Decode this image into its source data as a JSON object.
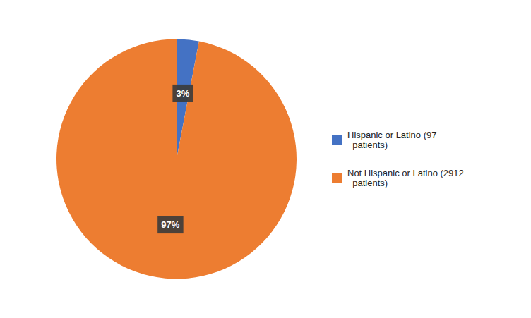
{
  "chart_data": {
    "type": "pie",
    "categories": [
      "Hispanic or Latino (97\n  patients)",
      "Not Hispanic or Latino (2912\n  patients)"
    ],
    "values": [
      3,
      97
    ],
    "value_labels": [
      "3%",
      "97%"
    ],
    "colors": [
      "#4472C4",
      "#ED7D31"
    ],
    "data_labels": true,
    "legend": "right"
  }
}
